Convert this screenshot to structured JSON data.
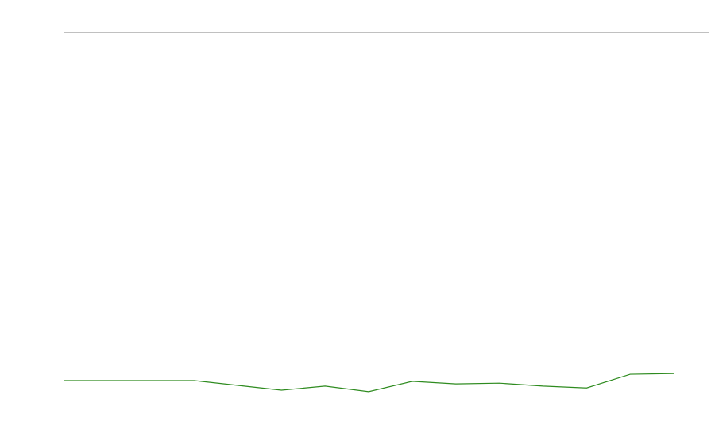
{
  "chart_data": {
    "type": "line",
    "title": "",
    "xlabel": "",
    "ylabel": "",
    "x": [
      1,
      2,
      3,
      4,
      5,
      6,
      7,
      8,
      9,
      10,
      11,
      12,
      13,
      14,
      15
    ],
    "series": [
      {
        "color": "#2e8b1f",
        "values": [
          5.4,
          5.4,
          5.4,
          5.4,
          4.1,
          2.8,
          3.9,
          2.4,
          5.2,
          4.5,
          4.7,
          3.9,
          3.4,
          7.1,
          7.3
        ]
      }
    ],
    "xlim": [
      1,
      15.8
    ],
    "ylim": [
      0,
      100
    ],
    "grid": false,
    "legend": "none",
    "frame_color": "#c0c0c0"
  }
}
